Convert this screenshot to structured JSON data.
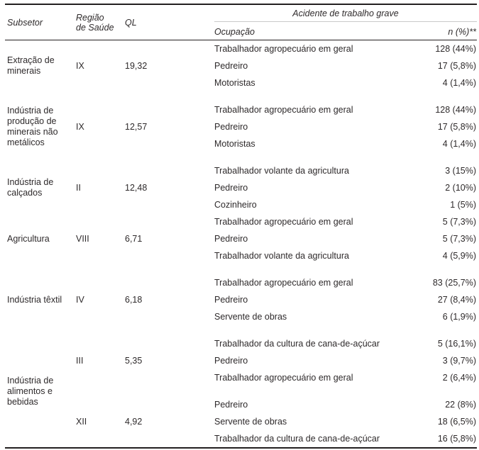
{
  "table": {
    "header": {
      "subsetor": "Subsetor",
      "regiao": "Região\nde Saúde",
      "ql": "QL",
      "acidente": "Acidente de trabalho grave",
      "ocupacao": "Ocupação",
      "n": "n (%)**"
    },
    "groups": [
      {
        "subsetor": "Extração de minerais",
        "blocks": [
          {
            "regiao": "IX",
            "ql": "19,32",
            "rows": [
              {
                "ocupacao": "Trabalhador agropecuário em geral",
                "n": "128 (44%)"
              },
              {
                "ocupacao": "Pedreiro",
                "n": "17 (5,8%)"
              },
              {
                "ocupacao": "Motoristas",
                "n": "4 (1,4%)"
              }
            ]
          }
        ]
      },
      {
        "subsetor": "Indústria de produção de minerais não metálicos",
        "blocks": [
          {
            "regiao": "IX",
            "ql": "12,57",
            "rows": [
              {
                "ocupacao": "Trabalhador agropecuário em geral",
                "n": "128 (44%)"
              },
              {
                "ocupacao": "Pedreiro",
                "n": "17 (5,8%)"
              },
              {
                "ocupacao": "Motoristas",
                "n": "4 (1,4%)"
              }
            ]
          }
        ]
      },
      {
        "subsetor": "Indústria de calçados",
        "blocks": [
          {
            "regiao": "II",
            "ql": "12,48",
            "rows": [
              {
                "ocupacao": "Trabalhador volante da agricultura",
                "n": "3 (15%)"
              },
              {
                "ocupacao": "Pedreiro",
                "n": "2 (10%)"
              },
              {
                "ocupacao": "Cozinheiro",
                "n": "1 (5%)"
              }
            ]
          }
        ]
      },
      {
        "subsetor": "Agricultura",
        "blocks": [
          {
            "regiao": "VIII",
            "ql": "6,71",
            "rows": [
              {
                "ocupacao": "Trabalhador agropecuário em geral",
                "n": "5 (7,3%)"
              },
              {
                "ocupacao": "Pedreiro",
                "n": "5 (7,3%)"
              },
              {
                "ocupacao": "Trabalhador volante da agricultura",
                "n": "4 (5,9%)"
              }
            ]
          }
        ]
      },
      {
        "subsetor": "Indústria têxtil",
        "blocks": [
          {
            "regiao": "IV",
            "ql": "6,18",
            "rows": [
              {
                "ocupacao": "Trabalhador agropecuário em geral",
                "n": "83 (25,7%)"
              },
              {
                "ocupacao": "Pedreiro",
                "n": "27 (8,4%)"
              },
              {
                "ocupacao": "Servente de obras",
                "n": "6 (1,9%)"
              }
            ]
          }
        ]
      },
      {
        "subsetor": "Indústria de alimentos e bebidas",
        "blocks": [
          {
            "regiao": "III",
            "ql": "5,35",
            "rows": [
              {
                "ocupacao": "Trabalhador da cultura de cana-de-açúcar",
                "n": "5 (16,1%)"
              },
              {
                "ocupacao": "Pedreiro",
                "n": "3 (9,7%)"
              },
              {
                "ocupacao": "Trabalhador agropecuário em geral",
                "n": "2 (6,4%)"
              }
            ]
          },
          {
            "regiao": "XII",
            "ql": "4,92",
            "rows": [
              {
                "ocupacao": "Pedreiro",
                "n": "22 (8%)"
              },
              {
                "ocupacao": "Servente de obras",
                "n": "18 (6,5%)"
              },
              {
                "ocupacao": "Trabalhador da cultura de cana-de-açúcar",
                "n": "16 (5,8%)"
              }
            ]
          }
        ]
      }
    ]
  }
}
